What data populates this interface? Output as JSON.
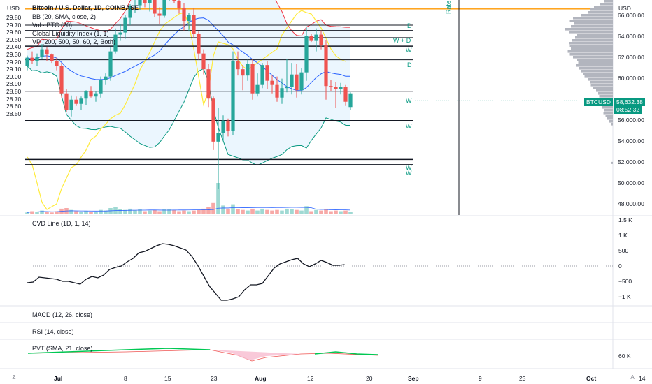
{
  "colors": {
    "up": "#26a69a",
    "down": "#ef5350",
    "bb_fill": "#e3f2fd",
    "bb_upper_line": "#f23645",
    "bb_lower_line": "#089981",
    "bb_basis": "#2962ff",
    "liquidity_line": "#ffeb3b",
    "orange_line": "#ff9800",
    "vp_bar": "#b2b5be",
    "price_tag": "#089981",
    "green_zone": "#00c853",
    "pvt_red": "#f8bbd0"
  },
  "left_axis": {
    "currency": "USD",
    "ticks": [
      "29.80",
      "29.70",
      "29.60",
      "29.50",
      "29.40",
      "29.30",
      "29.20",
      "29.10",
      "29.00",
      "28.90",
      "28.80",
      "28.70",
      "28.60",
      "28.50"
    ]
  },
  "right_axis": {
    "currency": "USD",
    "ticks": [
      "66,000.00",
      "64,000.00",
      "62,000.00",
      "60,000.00",
      "58,000.00",
      "56,000.00",
      "54,000.00",
      "52,000.00",
      "50,000.00",
      "48,000.00"
    ],
    "symbol_tag": "BTCUSD",
    "price_tag": "58,632.38",
    "countdown_tag": "08:52:32"
  },
  "legend": {
    "title": "Bitcoin / U.S. Dollar, 1D, COINBASE",
    "bb": "BB (20, SMA, close, 2)",
    "vol": "Vol · BTC (20)",
    "gli": "Global Liquidity Index (1, 1)",
    "vp": "VP (200, 500, 50, 60, 2, Both)"
  },
  "level_labels": [
    {
      "text": "D"
    },
    {
      "text": "W + D"
    },
    {
      "text": "W"
    },
    {
      "text": "D"
    },
    {
      "text": "W"
    },
    {
      "text": "W"
    },
    {
      "text": "W"
    },
    {
      "text": "W"
    }
  ],
  "rate_label": "Rate",
  "cvd": {
    "title": "CVD Line (1D, 1, 14)",
    "ticks": [
      "1.5 K",
      "1 K",
      "500",
      "0",
      "−500",
      "−1 K"
    ]
  },
  "macd": {
    "title": "MACD (12, 26, close)"
  },
  "rsi": {
    "title": "RSI (14, close)"
  },
  "pvt": {
    "title": "PVT (SMA, 21, close)",
    "tick": "60 K"
  },
  "x_axis": {
    "ticks": [
      "Jul",
      "8",
      "15",
      "23",
      "Aug",
      "12",
      "20",
      "Sep",
      "9",
      "23",
      "Oct",
      "14"
    ],
    "left_button": "Z",
    "right_button": "A"
  },
  "chart_data": {
    "type": "candlestick",
    "series": [
      {
        "name": "BTCUSD",
        "ohlc": [
          [
            61200,
            62200,
            60800,
            62000
          ],
          [
            62000,
            62600,
            61400,
            61700
          ],
          [
            61700,
            62400,
            61200,
            62100
          ],
          [
            62100,
            63300,
            61900,
            62800
          ],
          [
            62800,
            63000,
            61700,
            62300
          ],
          [
            62300,
            62400,
            61500,
            61700
          ],
          [
            61700,
            62000,
            60800,
            61200
          ],
          [
            61200,
            61500,
            58200,
            58600
          ],
          [
            58600,
            59000,
            56800,
            57000
          ],
          [
            57000,
            58400,
            56400,
            58000
          ],
          [
            58000,
            58300,
            57400,
            57600
          ],
          [
            57600,
            58300,
            57000,
            58100
          ],
          [
            58100,
            58900,
            57500,
            58800
          ],
          [
            58800,
            59300,
            58200,
            58300
          ],
          [
            58300,
            58800,
            57800,
            58600
          ],
          [
            58600,
            60200,
            58200,
            59900
          ],
          [
            59900,
            60500,
            59400,
            60200
          ],
          [
            60200,
            63000,
            59800,
            62600
          ],
          [
            62600,
            64800,
            62400,
            64200
          ],
          [
            64200,
            65200,
            63600,
            64400
          ],
          [
            64400,
            66100,
            63800,
            65800
          ],
          [
            65800,
            67100,
            65100,
            66900
          ],
          [
            66900,
            67500,
            66300,
            67000
          ],
          [
            67000,
            68200,
            66500,
            67800
          ],
          [
            67800,
            68400,
            66800,
            67200
          ],
          [
            67200,
            68100,
            66400,
            67900
          ],
          [
            67900,
            68600,
            65900,
            66200
          ],
          [
            66200,
            66800,
            65200,
            66000
          ],
          [
            66000,
            68800,
            65800,
            68200
          ],
          [
            68200,
            69800,
            67400,
            68400
          ],
          [
            68400,
            69900,
            67200,
            67400
          ],
          [
            67400,
            67800,
            66200,
            66700
          ],
          [
            66700,
            67200,
            64600,
            65500
          ],
          [
            65500,
            66300,
            64500,
            66100
          ],
          [
            66100,
            66700,
            63900,
            64300
          ],
          [
            64300,
            64500,
            61800,
            62400
          ],
          [
            62400,
            62800,
            60400,
            60900
          ],
          [
            60900,
            61400,
            57300,
            58100
          ],
          [
            58100,
            58300,
            53200,
            54000
          ],
          [
            54000,
            57200,
            49500,
            54800
          ],
          [
            54800,
            56500,
            54100,
            56000
          ],
          [
            56000,
            56200,
            54500,
            55000
          ],
          [
            55000,
            62600,
            54600,
            61700
          ],
          [
            61700,
            62600,
            60300,
            60900
          ],
          [
            60900,
            61300,
            58900,
            60300
          ],
          [
            60300,
            61800,
            59800,
            61400
          ],
          [
            61400,
            61900,
            58000,
            58600
          ],
          [
            58600,
            60500,
            58300,
            59400
          ],
          [
            59400,
            61500,
            59100,
            61300
          ],
          [
            61300,
            61700,
            59000,
            59800
          ],
          [
            59800,
            60300,
            58600,
            59400
          ],
          [
            59400,
            60200,
            57800,
            58200
          ],
          [
            58200,
            60000,
            57600,
            59100
          ],
          [
            59100,
            61900,
            58700,
            59200
          ],
          [
            59200,
            61500,
            58500,
            60400
          ],
          [
            60400,
            61400,
            58200,
            58900
          ],
          [
            58900,
            61000,
            58500,
            60600
          ],
          [
            60600,
            64900,
            59800,
            64100
          ],
          [
            64100,
            64300,
            63500,
            63600
          ],
          [
            63600,
            64800,
            62600,
            64200
          ],
          [
            64200,
            64600,
            62800,
            63200
          ],
          [
            63200,
            63700,
            58000,
            59300
          ],
          [
            59300,
            59900,
            58800,
            59200
          ],
          [
            59200,
            59700,
            57200,
            59000
          ],
          [
            59000,
            59600,
            58500,
            59200
          ],
          [
            59200,
            59400,
            57400,
            57800
          ],
          [
            57300,
            58700,
            57000,
            58600
          ]
        ]
      }
    ],
    "overlays": [
      "Bollinger Bands (20, 2)",
      "Global Liquidity Index",
      "Volume",
      "Volume Profile"
    ],
    "x_labels": [
      "Jul",
      "8",
      "15",
      "23",
      "Aug",
      "12",
      "20",
      "Sep",
      "9",
      "23",
      "Oct",
      "14"
    ],
    "y_range": [
      47000,
      67500
    ]
  }
}
